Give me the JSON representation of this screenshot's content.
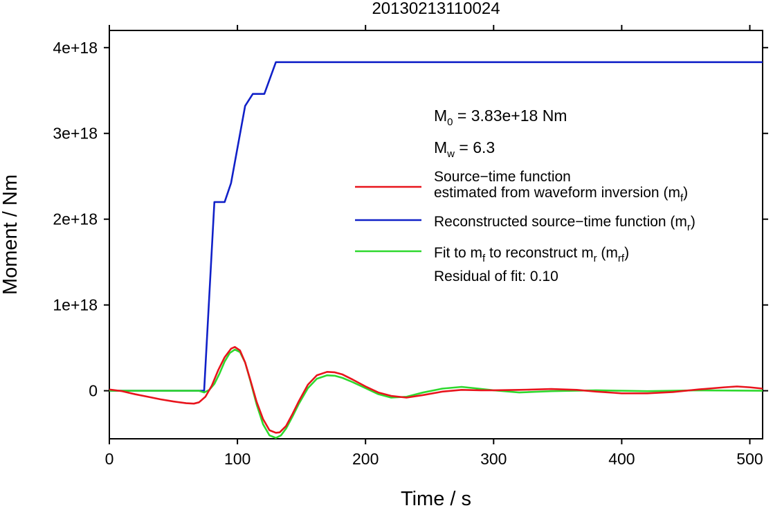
{
  "chart_data": {
    "type": "line",
    "title": "20130213110024",
    "xlabel": "Time / s",
    "ylabel": "Moment / Nm",
    "xlim": [
      0,
      510
    ],
    "ylim": [
      -5.6e+17,
      4.2e+18
    ],
    "x_ticks": [
      0,
      100,
      200,
      300,
      400,
      500
    ],
    "x_tick_labels": [
      "0",
      "100",
      "200",
      "300",
      "400",
      "500"
    ],
    "y_ticks": [
      0,
      1e+18,
      2e+18,
      3e+18,
      4e+18
    ],
    "y_tick_labels": [
      "0",
      "1e+18",
      "2e+18",
      "3e+18",
      "4e+18"
    ],
    "grid": false,
    "legend_position": "right",
    "annotations": {
      "m0": {
        "main": "M",
        "sub": "0",
        "rest": " = 3.83e+18 Nm"
      },
      "mw": {
        "main": "M",
        "sub": "w",
        "rest": " = 6.3"
      },
      "residual": "Residual of fit: 0.10"
    },
    "series": [
      {
        "name_lines": [
          {
            "text": "Source−time function"
          },
          {
            "text": "estimated from waveform inversion (m",
            "sub": "f",
            "end": ")"
          }
        ],
        "color": "#e8141c",
        "x": [
          0,
          10,
          20,
          30,
          40,
          50,
          60,
          66,
          70,
          75,
          80,
          85,
          90,
          95,
          98,
          102,
          106,
          110,
          115,
          120,
          125,
          130,
          133,
          138,
          143,
          148,
          155,
          162,
          170,
          176,
          182,
          190,
          200,
          210,
          220,
          232,
          245,
          260,
          275,
          290,
          300,
          320,
          345,
          365,
          380,
          400,
          420,
          440,
          460,
          480,
          490,
          500,
          510
        ],
        "y": [
          1.5e+16,
          -5000000000000000.0,
          -4e+16,
          -7e+16,
          -1e+17,
          -1.25e+17,
          -1.45e+17,
          -1.5e+17,
          -1.35e+17,
          -7e+16,
          6e+16,
          2.4e+17,
          3.9e+17,
          4.9e+17,
          5.1e+17,
          4.7e+17,
          3.3e+17,
          1.3e+17,
          -1.3e+17,
          -3.3e+17,
          -4.6e+17,
          -4.9e+17,
          -4.85e+17,
          -4.1e+17,
          -2.7e+17,
          -1.2e+17,
          7e+16,
          1.8e+17,
          2.2e+17,
          2.15e+17,
          1.9e+17,
          1.3e+17,
          5e+16,
          -2e+16,
          -6e+16,
          -8e+16,
          -5e+16,
          -1e+16,
          1e+16,
          5000000000000000.0,
          5000000000000000.0,
          1e+16,
          2e+16,
          1e+16,
          -1e+16,
          -3e+16,
          -3e+16,
          -1.5e+16,
          1.5e+16,
          4e+16,
          5e+16,
          4e+16,
          2.5e+16
        ]
      },
      {
        "name_lines": [
          {
            "text": "Reconstructed source−time function (m",
            "sub": "r",
            "end": ")"
          }
        ],
        "color": "#1020c8",
        "x": [
          0,
          74,
          82,
          90,
          95,
          106,
          112,
          121,
          130,
          510
        ],
        "y": [
          0,
          0,
          2.2e+18,
          2.2e+18,
          2.42e+18,
          3.32e+18,
          3.46e+18,
          3.46e+18,
          3.83e+18,
          3.83e+18
        ]
      },
      {
        "name_lines": [
          {
            "text": "Fit to m",
            "sub": "f",
            "mid": " to reconstruct m",
            "sub2": "r",
            "mid2": " (m",
            "sub3": "rf",
            "end": ")"
          }
        ],
        "color": "#2ed82e",
        "x": [
          0,
          70,
          74,
          78,
          82,
          86,
          90,
          94,
          98,
          102,
          106,
          110,
          115,
          120,
          125,
          130,
          134,
          138,
          143,
          148,
          155,
          162,
          170,
          176,
          182,
          190,
          200,
          210,
          220,
          232,
          245,
          260,
          275,
          285,
          300,
          320,
          345,
          380,
          420,
          460,
          510
        ],
        "y": [
          0,
          0,
          -2e+16,
          1e+16,
          8e+16,
          2e+17,
          3.4e+17,
          4.4e+17,
          4.8e+17,
          4.5e+17,
          3.3e+17,
          1.2e+17,
          -1.6e+17,
          -3.9e+17,
          -5.2e+17,
          -5.5e+17,
          -5.2e+17,
          -4.4e+17,
          -3e+17,
          -1.5e+17,
          3e+16,
          1.4e+17,
          1.8e+17,
          1.75e+17,
          1.5e+17,
          1e+17,
          3e+16,
          -4e+16,
          -8e+16,
          -7e+16,
          -2e+16,
          2.5e+16,
          4.5e+16,
          3e+16,
          5000000000000000.0,
          -2e+16,
          -5000000000000000.0,
          5000000000000000.0,
          -5000000000000000.0,
          5000000000000000.0,
          0
        ]
      }
    ]
  }
}
